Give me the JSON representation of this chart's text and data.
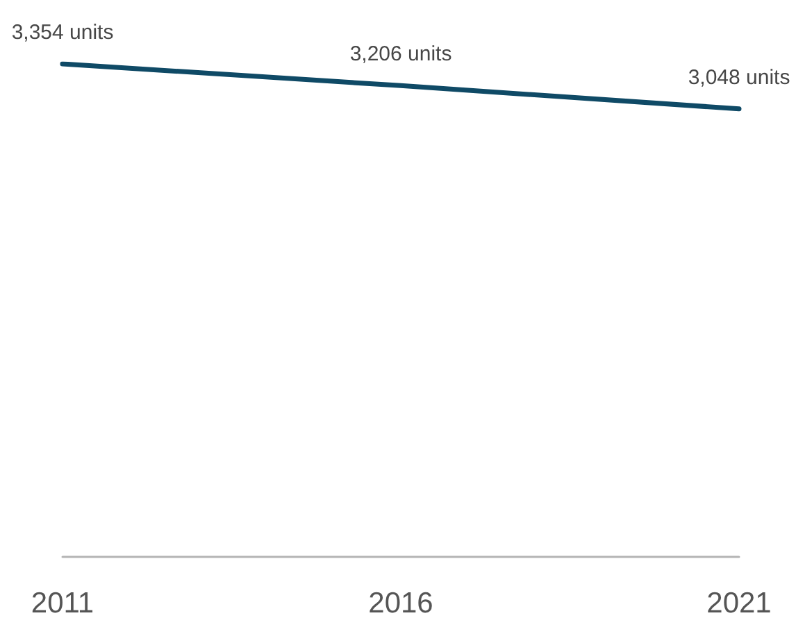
{
  "chart_data": {
    "type": "line",
    "categories": [
      "2011",
      "2016",
      "2021"
    ],
    "values": [
      3354,
      3206,
      3048
    ],
    "color": "#0f4a66",
    "value_labels": [
      "3,354 units",
      "3,206 units",
      "3,048 units"
    ],
    "tick_labels": "x",
    "marker": "none",
    "line_style": "solid"
  }
}
